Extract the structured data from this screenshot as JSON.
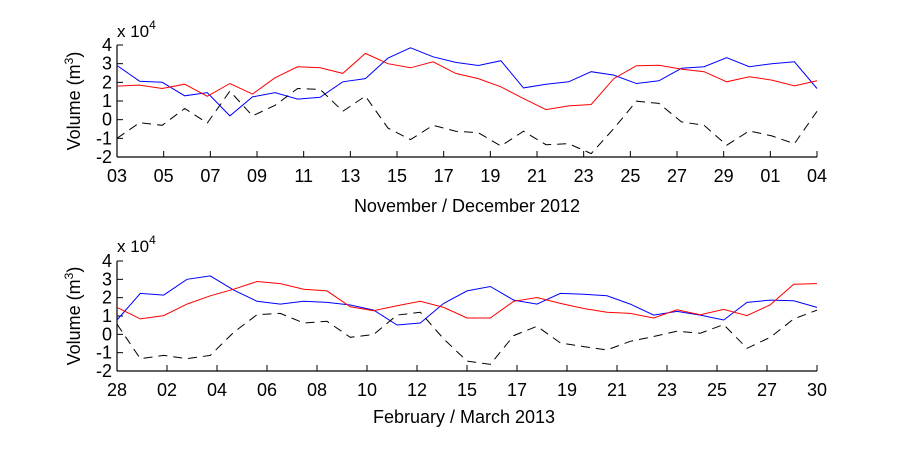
{
  "chart_data": [
    {
      "type": "line",
      "xlabel": "November / December 2012",
      "ylabel": "Volume (m",
      "ylabel_sup": "3",
      "ylabel_close": ")",
      "multiplier": "x 10",
      "multiplier_exp": "4",
      "ylim": [
        -2,
        4
      ],
      "yticks": [
        "4",
        "3",
        "2",
        "1",
        "0",
        "-1",
        "-2"
      ],
      "xticks": [
        "03",
        "05",
        "07",
        "09",
        "11",
        "13",
        "15",
        "17",
        "19",
        "21",
        "23",
        "25",
        "27",
        "29",
        "01",
        "04"
      ],
      "grid": false,
      "series": [
        {
          "color": "#0000ff",
          "style": "solid",
          "values": [
            2.9,
            2.06,
            2.0,
            1.28,
            1.45,
            0.2,
            1.22,
            1.45,
            1.1,
            1.2,
            2.03,
            2.2,
            3.3,
            3.85,
            3.37,
            3.07,
            2.9,
            3.16,
            1.7,
            1.9,
            2.03,
            2.57,
            2.39,
            1.94,
            2.08,
            2.75,
            2.84,
            3.32,
            2.84,
            3.0,
            3.1,
            1.67
          ]
        },
        {
          "color": "#ff0000",
          "style": "solid",
          "values": [
            1.8,
            1.85,
            1.67,
            1.9,
            1.25,
            1.94,
            1.37,
            2.25,
            2.83,
            2.78,
            2.48,
            3.55,
            3.0,
            2.78,
            3.1,
            2.48,
            2.2,
            1.76,
            1.13,
            0.54,
            0.74,
            0.81,
            2.2,
            2.89,
            2.92,
            2.71,
            2.57,
            2.03,
            2.3,
            2.12,
            1.81,
            2.08
          ]
        },
        {
          "color": "#000000",
          "style": "dashed",
          "values": [
            -1.0,
            -0.16,
            -0.3,
            0.6,
            -0.18,
            1.53,
            0.2,
            0.77,
            1.67,
            1.62,
            0.45,
            1.26,
            -0.45,
            -1.07,
            -0.3,
            -0.62,
            -0.7,
            -1.41,
            -0.62,
            -1.34,
            -1.29,
            -1.82,
            -0.48,
            0.99,
            0.87,
            -0.12,
            -0.3,
            -1.37,
            -0.6,
            -0.87,
            -1.29,
            0.45
          ]
        }
      ]
    },
    {
      "type": "line",
      "xlabel": "February / March 2013",
      "ylabel": "Volume (m",
      "ylabel_sup": "3",
      "ylabel_close": ")",
      "multiplier": "x 10",
      "multiplier_exp": "4",
      "ylim": [
        -2,
        4
      ],
      "yticks": [
        "4",
        "3",
        "2",
        "1",
        "0",
        "-1",
        "-2"
      ],
      "xticks": [
        "28",
        "02",
        "04",
        "06",
        "08",
        "10",
        "12",
        "15",
        "17",
        "19",
        "21",
        "23",
        "25",
        "27",
        "30"
      ],
      "grid": false,
      "series": [
        {
          "color": "#0000ff",
          "style": "solid",
          "values": [
            0.78,
            2.23,
            2.14,
            3.0,
            3.19,
            2.41,
            1.8,
            1.65,
            1.8,
            1.74,
            1.6,
            1.32,
            0.51,
            0.62,
            1.69,
            2.37,
            2.61,
            1.87,
            1.65,
            2.23,
            2.19,
            2.1,
            1.65,
            1.05,
            1.25,
            1.05,
            0.78,
            1.74,
            1.87,
            1.83,
            1.47
          ]
        },
        {
          "color": "#ff0000",
          "style": "solid",
          "values": [
            1.47,
            0.84,
            1.02,
            1.65,
            2.1,
            2.46,
            2.88,
            2.77,
            2.46,
            2.37,
            1.5,
            1.29,
            1.56,
            1.8,
            1.47,
            0.89,
            0.89,
            1.8,
            2.01,
            1.69,
            1.41,
            1.2,
            1.14,
            0.89,
            1.34,
            1.07,
            1.36,
            1.02,
            1.61,
            2.73,
            2.77
          ]
        },
        {
          "color": "#000000",
          "style": "dashed",
          "values": [
            0.56,
            -1.33,
            -1.15,
            -1.33,
            -1.15,
            0.11,
            1.07,
            1.14,
            0.62,
            0.71,
            -0.16,
            -0.01,
            1.05,
            1.2,
            -0.25,
            -1.46,
            -1.64,
            -0.07,
            0.44,
            -0.47,
            -0.67,
            -0.85,
            -0.38,
            -0.12,
            0.17,
            0.06,
            0.53,
            -0.76,
            -0.16,
            0.84,
            1.32
          ]
        }
      ]
    }
  ]
}
